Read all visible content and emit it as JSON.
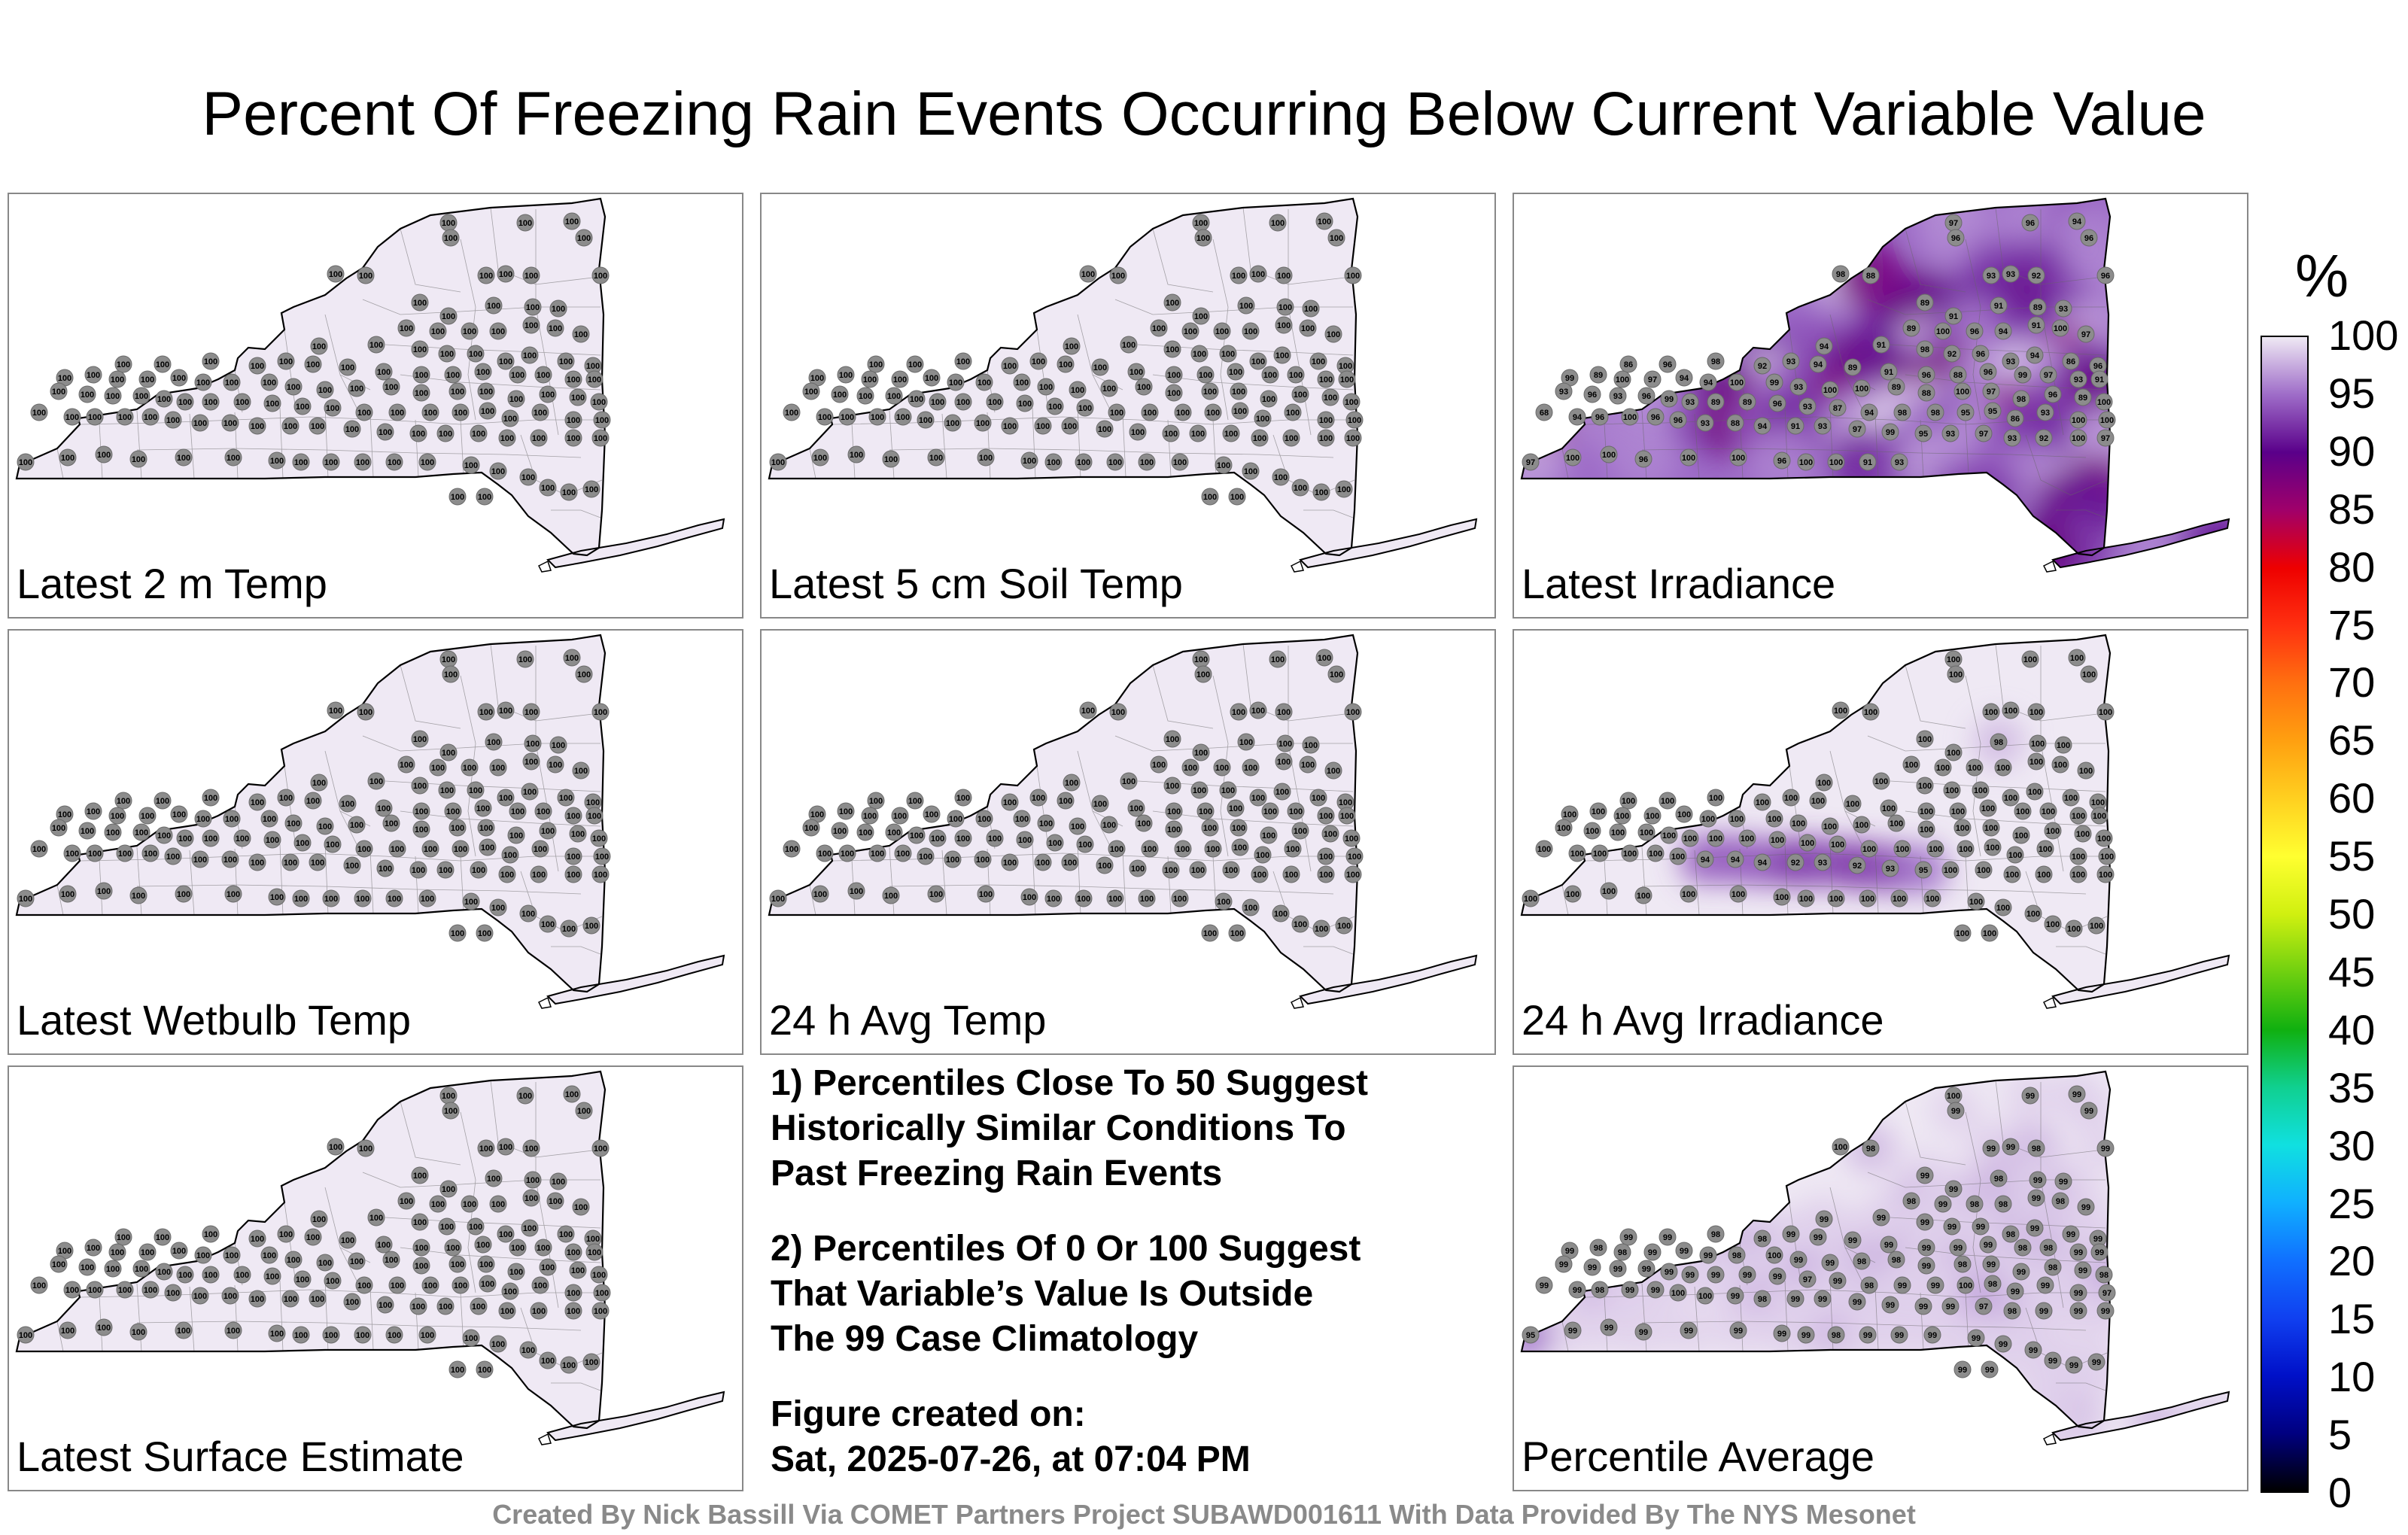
{
  "title": "Percent Of Freezing Rain Events Occurring Below Current Variable Value",
  "colors": {
    "state_fill_high": "#efe9f4",
    "station_marker": "#8c8c8c",
    "cool_purple": "#6a1aa0",
    "warm_red": "#e01010",
    "panel_border": "#888888",
    "footer_text": "#8a8a8a"
  },
  "panels": [
    {
      "label": "Latest 2 m Temp",
      "field": "uniform",
      "station_values": [
        100,
        100,
        100,
        100,
        100,
        100,
        100,
        100,
        100,
        100,
        100,
        100,
        100,
        100,
        100,
        100,
        100,
        100,
        100,
        100,
        100,
        100,
        100,
        100,
        100,
        100,
        100,
        100,
        100,
        100,
        100,
        100,
        100,
        100,
        100,
        100,
        100,
        100,
        100,
        100,
        100,
        100,
        100,
        100,
        100,
        100,
        100,
        100,
        100,
        100,
        100,
        100,
        100,
        100,
        100,
        100,
        100,
        100,
        100,
        100,
        100,
        100,
        100,
        100,
        100,
        100,
        100,
        100,
        100,
        100,
        100,
        100,
        100,
        100,
        100,
        100,
        100,
        100,
        100,
        100,
        100,
        100,
        100,
        100,
        100,
        100,
        100,
        100,
        100,
        100,
        100,
        100,
        100,
        100,
        100,
        100,
        100,
        100,
        100,
        100,
        100,
        100,
        100,
        100,
        100,
        100,
        100,
        100,
        100,
        100,
        100,
        100,
        100,
        100,
        100,
        100,
        100,
        100,
        100,
        100,
        100,
        100,
        100,
        100,
        100,
        100
      ]
    },
    {
      "label": "Latest 5 cm Soil Temp",
      "field": "uniform",
      "station_values": [
        100,
        100,
        100,
        100,
        100,
        100,
        100,
        100,
        100,
        100,
        100,
        100,
        100,
        100,
        100,
        100,
        100,
        100,
        100,
        100,
        100,
        100,
        100,
        100,
        100,
        100,
        100,
        100,
        100,
        100,
        100,
        100,
        100,
        100,
        100,
        100,
        100,
        100,
        100,
        100,
        100,
        100,
        100,
        100,
        100,
        100,
        100,
        100,
        100,
        100,
        100,
        100,
        100,
        100,
        100,
        100,
        100,
        100,
        100,
        100,
        100,
        100,
        100,
        100,
        100,
        100,
        100,
        100,
        100,
        100,
        100,
        100,
        100,
        100,
        100,
        100,
        100,
        100,
        100,
        100,
        100,
        100,
        100,
        100,
        100,
        100,
        100,
        100,
        100,
        100,
        100,
        100,
        100,
        100,
        100,
        100,
        100,
        100,
        100,
        100,
        100,
        100,
        100,
        100,
        100,
        100,
        100,
        100,
        100,
        100,
        100,
        100,
        100,
        100,
        100,
        100,
        100,
        100,
        100,
        100,
        100,
        100,
        100,
        100,
        100,
        100
      ]
    },
    {
      "label": "Latest Irradiance",
      "field": "irradiance",
      "station_values": [
        97,
        96,
        94,
        96,
        96,
        98,
        88,
        93,
        93,
        92,
        96,
        89,
        91,
        91,
        89,
        93,
        89,
        100,
        96,
        94,
        91,
        100,
        97,
        91,
        94,
        98,
        92,
        96,
        93,
        94,
        86,
        96,
        86,
        96,
        98,
        92,
        93,
        94,
        89,
        91,
        96,
        88,
        96,
        99,
        97,
        93,
        91,
        99,
        89,
        100,
        97,
        94,
        94,
        100,
        99,
        93,
        100,
        100,
        89,
        88,
        100,
        97,
        98,
        96,
        89,
        100,
        93,
        96,
        93,
        96,
        99,
        93,
        89,
        89,
        96,
        93,
        87,
        94,
        98,
        98,
        95,
        95,
        86,
        93,
        100,
        100,
        68,
        94,
        96,
        100,
        96,
        96,
        93,
        88,
        94,
        91,
        93,
        97,
        99,
        95,
        93,
        97,
        93,
        92,
        100,
        97,
        97,
        100,
        100,
        96,
        100,
        100,
        96,
        100,
        100,
        91,
        93
      ]
    },
    {
      "label": "Latest Wetbulb Temp",
      "field": "uniform",
      "station_values": [
        100,
        100,
        100,
        100,
        100,
        100,
        100,
        100,
        100,
        100,
        100,
        100,
        100,
        100,
        100,
        100,
        100,
        100,
        100,
        100,
        100,
        100,
        100,
        100,
        100,
        100,
        100,
        100,
        100,
        100,
        100,
        100,
        100,
        100,
        100,
        100,
        100,
        100,
        100,
        100,
        100,
        100,
        100,
        100,
        100,
        100,
        100,
        100,
        100,
        100,
        100,
        100,
        100,
        100,
        100,
        100,
        100,
        100,
        100,
        100,
        100,
        100,
        100,
        100,
        100,
        100,
        100,
        100,
        100,
        100,
        100,
        100,
        100,
        100,
        100,
        100,
        100,
        100,
        100,
        100,
        100,
        100,
        100,
        100,
        100,
        100,
        100,
        100,
        100,
        100,
        100,
        100,
        100,
        100,
        100,
        100,
        100,
        100,
        100,
        100,
        100,
        100,
        100,
        100,
        100,
        100,
        100,
        100,
        100,
        100,
        100,
        100,
        100,
        100,
        100,
        100,
        100,
        100,
        100,
        100,
        100,
        100,
        100,
        100,
        100,
        100
      ]
    },
    {
      "label": "24 h Avg Temp",
      "field": "uniform",
      "station_values": [
        100,
        100,
        100,
        100,
        100,
        100,
        100,
        100,
        100,
        100,
        100,
        100,
        100,
        100,
        100,
        100,
        100,
        100,
        100,
        100,
        100,
        100,
        100,
        100,
        100,
        100,
        100,
        100,
        100,
        100,
        100,
        100,
        100,
        100,
        100,
        100,
        100,
        100,
        100,
        100,
        100,
        100,
        100,
        100,
        100,
        100,
        100,
        100,
        100,
        100,
        100,
        100,
        100,
        100,
        100,
        100,
        100,
        100,
        100,
        100,
        100,
        100,
        100,
        100,
        100,
        100,
        100,
        100,
        100,
        100,
        100,
        100,
        100,
        100,
        100,
        100,
        100,
        100,
        100,
        100,
        100,
        100,
        100,
        100,
        100,
        100,
        100,
        100,
        100,
        100,
        100,
        100,
        100,
        100,
        100,
        100,
        100,
        100,
        100,
        100,
        100,
        100,
        100,
        100,
        100,
        100,
        100,
        100,
        100,
        100,
        100,
        100,
        100,
        100,
        100,
        100,
        100,
        100,
        100,
        100,
        100,
        100,
        100,
        100,
        100,
        100
      ]
    },
    {
      "label": "24 h Avg Irradiance",
      "field": "avg-irradiance",
      "station_values": [
        100,
        100,
        100,
        100,
        100,
        100,
        100,
        100,
        100,
        100,
        100,
        100,
        100,
        98,
        100,
        100,
        100,
        100,
        100,
        100,
        100,
        100,
        100,
        100,
        100,
        100,
        100,
        100,
        100,
        100,
        100,
        100,
        100,
        100,
        100,
        100,
        100,
        100,
        100,
        100,
        100,
        100,
        100,
        100,
        100,
        100,
        100,
        100,
        100,
        100,
        100,
        100,
        100,
        100,
        100,
        100,
        100,
        100,
        100,
        100,
        100,
        100,
        100,
        100,
        100,
        100,
        100,
        100,
        100,
        100,
        100,
        100,
        100,
        100,
        100,
        100,
        100,
        100,
        100,
        100,
        100,
        100,
        100,
        100,
        100,
        100,
        100,
        100,
        100,
        100,
        100,
        100,
        94,
        94,
        94,
        92,
        93,
        92,
        93,
        95,
        100,
        100,
        100,
        100,
        100,
        100,
        100,
        100,
        100,
        100,
        100,
        100,
        100,
        100,
        100,
        100,
        100,
        100,
        100,
        100,
        100,
        100,
        100,
        100,
        100,
        100
      ]
    },
    {
      "label": "Latest Surface Estimate",
      "field": "uniform",
      "station_values": [
        100,
        100,
        100,
        100,
        100,
        100,
        100,
        100,
        100,
        100,
        100,
        100,
        100,
        100,
        100,
        100,
        100,
        100,
        100,
        100,
        100,
        100,
        100,
        100,
        100,
        100,
        100,
        100,
        100,
        100,
        100,
        100,
        100,
        100,
        100,
        100,
        100,
        100,
        100,
        100,
        100,
        100,
        100,
        100,
        100,
        100,
        100,
        100,
        100,
        100,
        100,
        100,
        100,
        100,
        100,
        100,
        100,
        100,
        100,
        100,
        100,
        100,
        100,
        100,
        100,
        100,
        100,
        100,
        100,
        100,
        100,
        100,
        100,
        100,
        100,
        100,
        100,
        100,
        100,
        100,
        100,
        100,
        100,
        100,
        100,
        100,
        100,
        100,
        100,
        100,
        100,
        100,
        100,
        100,
        100,
        100,
        100,
        100,
        100,
        100,
        100,
        100,
        100,
        100,
        100,
        100,
        100,
        100,
        100,
        100,
        100,
        100,
        100,
        100,
        100,
        100,
        100,
        100,
        100,
        100,
        100,
        100,
        100,
        100,
        100,
        100
      ]
    },
    {
      "label": "Percentile Average",
      "field": "average",
      "station_values": [
        100,
        99,
        99,
        99,
        99,
        100,
        98,
        99,
        99,
        98,
        99,
        99,
        99,
        98,
        99,
        99,
        98,
        99,
        98,
        98,
        99,
        98,
        99,
        99,
        99,
        99,
        99,
        99,
        98,
        99,
        99,
        99,
        99,
        99,
        98,
        98,
        99,
        99,
        99,
        99,
        99,
        99,
        99,
        98,
        98,
        99,
        99,
        99,
        98,
        98,
        99,
        99,
        99,
        98,
        100,
        99,
        99,
        98,
        98,
        99,
        98,
        99,
        99,
        98,
        99,
        98,
        99,
        99,
        99,
        99,
        99,
        99,
        99,
        99,
        99,
        97,
        99,
        98,
        99,
        99,
        100,
        98,
        99,
        99,
        99,
        97,
        99,
        99,
        98,
        99,
        99,
        100,
        100,
        99,
        98,
        99,
        99,
        99,
        99,
        99,
        99,
        97,
        98,
        99,
        99,
        99,
        95,
        99,
        99,
        99,
        99,
        99,
        99,
        99,
        98,
        99,
        99,
        99,
        99,
        99,
        99,
        99,
        99,
        99,
        99,
        99
      ]
    }
  ],
  "notes": {
    "note1": "1) Percentiles Close To 50 Suggest\nHistorically Similar Conditions To\nPast Freezing Rain Events",
    "note2": "2) Percentiles Of 0 Or 100 Suggest\nThat Variable’s Value Is Outside\nThe 99 Case Climatology",
    "created_label": "Figure created on:",
    "created_date": "Sat, 2025-07-26, at 07:04 PM"
  },
  "colorbar": {
    "unit": "%",
    "min": 0,
    "max": 100,
    "step": 5,
    "tick_labels": [
      "100",
      "95",
      "90",
      "85",
      "80",
      "75",
      "70",
      "65",
      "60",
      "55",
      "50",
      "45",
      "40",
      "35",
      "30",
      "25",
      "20",
      "15",
      "10",
      "5",
      "0"
    ],
    "stops": [
      {
        "value": 0,
        "color": "#000000"
      },
      {
        "value": 5,
        "color": "#000080"
      },
      {
        "value": 10,
        "color": "#0010c8"
      },
      {
        "value": 15,
        "color": "#1040f0"
      },
      {
        "value": 20,
        "color": "#1070ff"
      },
      {
        "value": 25,
        "color": "#10b0ff"
      },
      {
        "value": 30,
        "color": "#10e0e0"
      },
      {
        "value": 35,
        "color": "#10d090"
      },
      {
        "value": 40,
        "color": "#10b010"
      },
      {
        "value": 45,
        "color": "#70d010"
      },
      {
        "value": 50,
        "color": "#d0f010"
      },
      {
        "value": 55,
        "color": "#ffff30"
      },
      {
        "value": 60,
        "color": "#ffd020"
      },
      {
        "value": 65,
        "color": "#ffa010"
      },
      {
        "value": 70,
        "color": "#ff7010"
      },
      {
        "value": 75,
        "color": "#ff3010"
      },
      {
        "value": 80,
        "color": "#ee0000"
      },
      {
        "value": 85,
        "color": "#a0006a"
      },
      {
        "value": 90,
        "color": "#5a008a"
      },
      {
        "value": 95,
        "color": "#9e6cc8"
      },
      {
        "value": 100,
        "color": "#efe9f4"
      }
    ]
  },
  "footer": "Created By Nick Bassill Via COMET Partners Project SUBAWD001611 With Data Provided By The NYS Mesonet"
}
